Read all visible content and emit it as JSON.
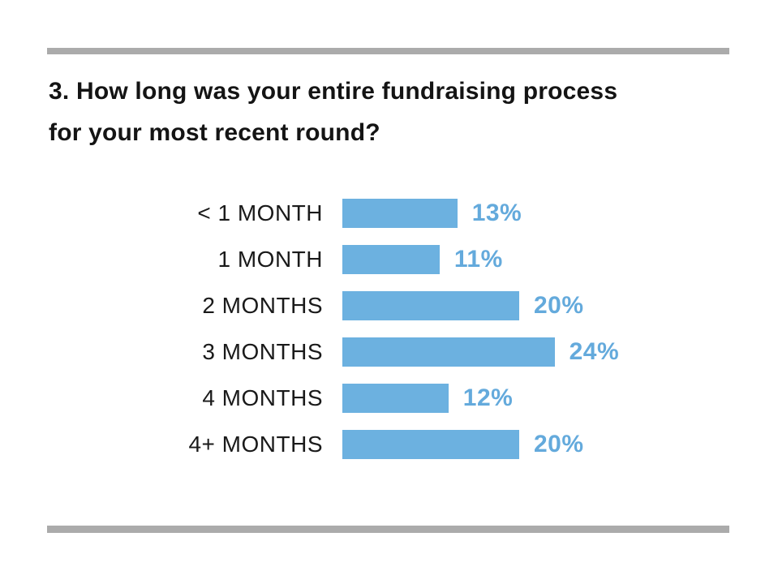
{
  "title": {
    "lines": [
      "3. How long was your entire fundraising process",
      "for your most recent round?"
    ]
  },
  "chart_data": {
    "type": "bar",
    "orientation": "horizontal",
    "title": "3. How long was your entire fundraising process for your most recent round?",
    "categories": [
      "< 1 MONTH",
      "1 MONTH",
      "2 MONTHS",
      "3 MONTHS",
      "4 MONTHS",
      "4+ MONTHS"
    ],
    "values": [
      13,
      11,
      20,
      24,
      12,
      20
    ],
    "value_labels": [
      "13%",
      "11%",
      "20%",
      "24%",
      "12%",
      "20%"
    ],
    "xlabel": "",
    "ylabel": "",
    "xlim": [
      0,
      30
    ],
    "grid": false,
    "legend": "none",
    "bar_color": "#6cb1e0",
    "value_label_color": "#64aadc"
  },
  "colors": {
    "background": "#ffffff",
    "rule": "#ababab",
    "title_text": "#141414",
    "category_text": "#1a1a1a",
    "bar": "#6cb1e0",
    "percent_text": "#64aadc"
  }
}
